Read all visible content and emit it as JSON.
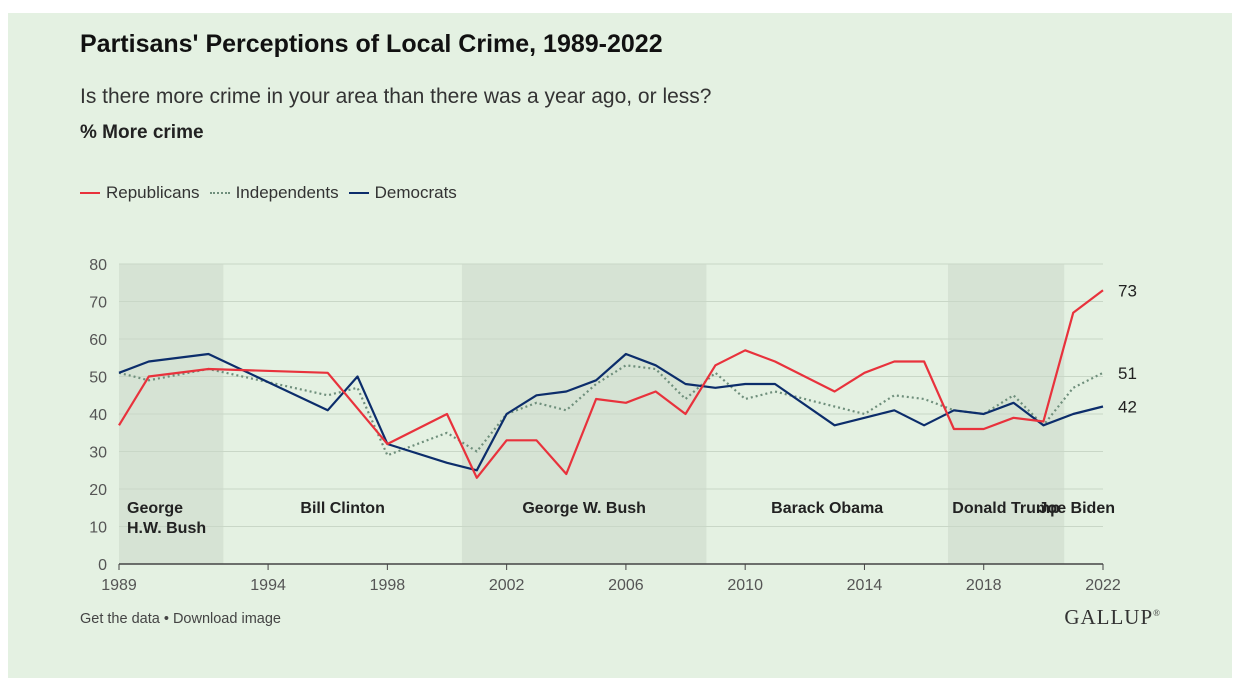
{
  "chart_data": {
    "type": "line",
    "title": "Partisans' Perceptions of Local Crime, 1989-2022",
    "subtitle": "Is there more crime in your area than there was a year ago, or less?",
    "measure_label": "% More crime",
    "legend_position": "top-left",
    "grid": true,
    "ylim": [
      0,
      80
    ],
    "yticks": [
      0,
      10,
      20,
      30,
      40,
      50,
      60,
      70,
      80
    ],
    "xlim": [
      1989,
      2022
    ],
    "xticks": [
      1989,
      1994,
      1998,
      2002,
      2006,
      2010,
      2014,
      2018,
      2022
    ],
    "series": [
      {
        "name": "Republicans",
        "color": "#e8323c",
        "style": "solid",
        "end_label": "73",
        "points": [
          [
            1989,
            37
          ],
          [
            1990,
            50
          ],
          [
            1992,
            52
          ],
          [
            1996,
            51
          ],
          [
            1998,
            32
          ],
          [
            2000,
            40
          ],
          [
            2001,
            23
          ],
          [
            2002,
            33
          ],
          [
            2003,
            33
          ],
          [
            2004,
            24
          ],
          [
            2005,
            44
          ],
          [
            2006,
            43
          ],
          [
            2007,
            46
          ],
          [
            2008,
            40
          ],
          [
            2009,
            53
          ],
          [
            2010,
            57
          ],
          [
            2011,
            54
          ],
          [
            2013,
            46
          ],
          [
            2014,
            51
          ],
          [
            2015,
            54
          ],
          [
            2016,
            54
          ],
          [
            2017,
            36
          ],
          [
            2018,
            36
          ],
          [
            2019,
            39
          ],
          [
            2020,
            38
          ],
          [
            2021,
            67
          ],
          [
            2022,
            73
          ]
        ]
      },
      {
        "name": "Independents",
        "color": "#6f8f7c",
        "style": "dotted",
        "end_label": "51",
        "points": [
          [
            1989,
            51
          ],
          [
            1990,
            49
          ],
          [
            1992,
            52
          ],
          [
            1996,
            45
          ],
          [
            1997,
            47
          ],
          [
            1998,
            29
          ],
          [
            2000,
            35
          ],
          [
            2001,
            30
          ],
          [
            2002,
            40
          ],
          [
            2003,
            43
          ],
          [
            2004,
            41
          ],
          [
            2005,
            48
          ],
          [
            2006,
            53
          ],
          [
            2007,
            52
          ],
          [
            2008,
            44
          ],
          [
            2009,
            51
          ],
          [
            2010,
            44
          ],
          [
            2011,
            46
          ],
          [
            2013,
            42
          ],
          [
            2014,
            40
          ],
          [
            2015,
            45
          ],
          [
            2016,
            44
          ],
          [
            2017,
            41
          ],
          [
            2018,
            40
          ],
          [
            2019,
            45
          ],
          [
            2020,
            37
          ],
          [
            2021,
            47
          ],
          [
            2022,
            51
          ]
        ]
      },
      {
        "name": "Democrats",
        "color": "#0c2d6b",
        "style": "solid",
        "end_label": "42",
        "points": [
          [
            1989,
            51
          ],
          [
            1990,
            54
          ],
          [
            1992,
            56
          ],
          [
            1996,
            41
          ],
          [
            1997,
            50
          ],
          [
            1998,
            32
          ],
          [
            2000,
            27
          ],
          [
            2001,
            25
          ],
          [
            2002,
            40
          ],
          [
            2003,
            45
          ],
          [
            2004,
            46
          ],
          [
            2005,
            49
          ],
          [
            2006,
            56
          ],
          [
            2007,
            53
          ],
          [
            2008,
            48
          ],
          [
            2009,
            47
          ],
          [
            2010,
            48
          ],
          [
            2011,
            48
          ],
          [
            2013,
            37
          ],
          [
            2014,
            39
          ],
          [
            2015,
            41
          ],
          [
            2016,
            37
          ],
          [
            2017,
            41
          ],
          [
            2018,
            40
          ],
          [
            2019,
            43
          ],
          [
            2020,
            37
          ],
          [
            2021,
            40
          ],
          [
            2022,
            42
          ]
        ]
      }
    ],
    "presidencies": [
      {
        "name": "George H.W. Bush",
        "lines": [
          "George",
          "H.W. Bush"
        ],
        "start": 1989,
        "end": 1992.5,
        "shaded": true
      },
      {
        "name": "Bill Clinton",
        "lines": [
          "Bill Clinton"
        ],
        "start": 1992.5,
        "end": 2000.5,
        "shaded": false
      },
      {
        "name": "George W. Bush",
        "lines": [
          "George W. Bush"
        ],
        "start": 2000.5,
        "end": 2008.7,
        "shaded": true
      },
      {
        "name": "Barack Obama",
        "lines": [
          "Barack Obama"
        ],
        "start": 2008.7,
        "end": 2016.8,
        "shaded": false
      },
      {
        "name": "Donald Trump",
        "lines": [
          "Donald Trump"
        ],
        "start": 2016.8,
        "end": 2020.7,
        "shaded": true
      },
      {
        "name": "Joe Biden",
        "lines": [
          "Joe Biden"
        ],
        "start": 2020.7,
        "end": 2022,
        "shaded": false
      }
    ],
    "colors": {
      "background": "#e4f1e2",
      "shade": "#d6e3d4",
      "grid": "#c9d7c7",
      "axis_text": "#555555"
    }
  },
  "footer": {
    "get_data": "Get the data",
    "separator": "•",
    "download": "Download image"
  },
  "brand": "GALLUP",
  "brand_mark": "®"
}
